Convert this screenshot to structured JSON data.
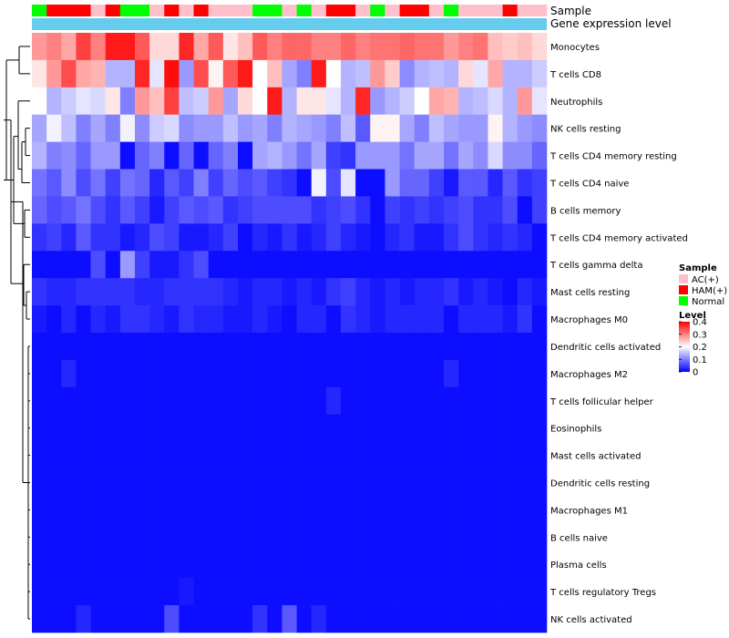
{
  "chart_data": {
    "type": "heatmap",
    "title": "",
    "annotation_rows": [
      "Sample",
      "Gene expression level"
    ],
    "row_labels": [
      "Monocytes",
      "T cells CD8",
      "Neutrophils",
      "NK cells resting",
      "T cells CD4 memory resting",
      "T cells CD4 naive",
      "B cells memory",
      "T cells CD4 memory activated",
      "T cells gamma delta",
      "Mast cells resting",
      "Macrophages M0",
      "Dendritic cells activated",
      "Macrophages M2",
      "T cells follicular helper",
      "Eosinophils",
      "Mast cells activated",
      "Dendritic cells resting",
      "Macrophages M1",
      "B cells naive",
      "Plasma cells",
      "T cells regulatory  Tregs",
      "NK cells activated"
    ],
    "sample_groups": [
      "Normal",
      "HAM(+)",
      "HAM(+)",
      "HAM(+)",
      "AC(+)",
      "HAM(+)",
      "Normal",
      "Normal",
      "AC(+)",
      "HAM(+)",
      "AC(+)",
      "HAM(+)",
      "AC(+)",
      "AC(+)",
      "AC(+)",
      "Normal",
      "Normal",
      "AC(+)",
      "Normal",
      "AC(+)",
      "HAM(+)",
      "HAM(+)",
      "AC(+)",
      "Normal",
      "AC(+)",
      "HAM(+)",
      "HAM(+)",
      "AC(+)",
      "Normal",
      "AC(+)",
      "AC(+)",
      "AC(+)",
      "HAM(+)",
      "AC(+)",
      "AC(+)"
    ],
    "values": [
      [
        0.28,
        0.3,
        0.27,
        0.35,
        0.3,
        0.38,
        0.38,
        0.33,
        0.23,
        0.23,
        0.37,
        0.27,
        0.33,
        0.22,
        0.25,
        0.33,
        0.3,
        0.32,
        0.32,
        0.3,
        0.3,
        0.32,
        0.3,
        0.31,
        0.31,
        0.32,
        0.31,
        0.31,
        0.28,
        0.3,
        0.31,
        0.25,
        0.24,
        0.25,
        0.23
      ],
      [
        0.22,
        0.28,
        0.34,
        0.27,
        0.26,
        0.14,
        0.14,
        0.37,
        0.18,
        0.39,
        0.12,
        0.34,
        0.21,
        0.33,
        0.38,
        0.2,
        0.25,
        0.13,
        0.1,
        0.38,
        0.2,
        0.14,
        0.15,
        0.28,
        0.24,
        0.11,
        0.14,
        0.15,
        0.14,
        0.23,
        0.18,
        0.27,
        0.14,
        0.14,
        0.16
      ],
      [
        0.2,
        0.14,
        0.16,
        0.18,
        0.17,
        0.22,
        0.1,
        0.28,
        0.25,
        0.35,
        0.15,
        0.16,
        0.28,
        0.13,
        0.23,
        0.2,
        0.38,
        0.14,
        0.22,
        0.22,
        0.18,
        0.14,
        0.37,
        0.12,
        0.14,
        0.16,
        0.2,
        0.27,
        0.26,
        0.14,
        0.15,
        0.17,
        0.14,
        0.28,
        0.18
      ],
      [
        0.13,
        0.19,
        0.15,
        0.1,
        0.13,
        0.1,
        0.19,
        0.11,
        0.16,
        0.17,
        0.11,
        0.12,
        0.12,
        0.15,
        0.12,
        0.13,
        0.1,
        0.14,
        0.13,
        0.12,
        0.1,
        0.15,
        0.07,
        0.21,
        0.21,
        0.13,
        0.1,
        0.15,
        0.13,
        0.12,
        0.12,
        0.21,
        0.14,
        0.12,
        0.11
      ],
      [
        0.14,
        0.1,
        0.11,
        0.08,
        0.12,
        0.12,
        0.01,
        0.08,
        0.1,
        0.01,
        0.08,
        0.01,
        0.08,
        0.1,
        0.01,
        0.13,
        0.14,
        0.12,
        0.09,
        0.13,
        0.05,
        0.04,
        0.12,
        0.12,
        0.12,
        0.09,
        0.13,
        0.13,
        0.09,
        0.13,
        0.11,
        0.17,
        0.11,
        0.11,
        0.08
      ],
      [
        0.09,
        0.07,
        0.11,
        0.06,
        0.09,
        0.05,
        0.09,
        0.08,
        0.03,
        0.07,
        0.05,
        0.1,
        0.05,
        0.08,
        0.06,
        0.07,
        0.05,
        0.04,
        0.01,
        0.19,
        0.06,
        0.18,
        0.01,
        0.01,
        0.12,
        0.08,
        0.08,
        0.05,
        0.02,
        0.07,
        0.07,
        0.03,
        0.07,
        0.04,
        0.05
      ],
      [
        0.08,
        0.06,
        0.07,
        0.09,
        0.06,
        0.04,
        0.07,
        0.05,
        0.02,
        0.05,
        0.07,
        0.06,
        0.07,
        0.04,
        0.05,
        0.06,
        0.06,
        0.06,
        0.06,
        0.04,
        0.05,
        0.06,
        0.04,
        0.01,
        0.05,
        0.04,
        0.05,
        0.04,
        0.05,
        0.06,
        0.04,
        0.04,
        0.06,
        0.01,
        0.05
      ],
      [
        0.04,
        0.05,
        0.03,
        0.07,
        0.04,
        0.04,
        0.02,
        0.03,
        0.06,
        0.05,
        0.02,
        0.02,
        0.03,
        0.05,
        0.01,
        0.03,
        0.02,
        0.04,
        0.02,
        0.03,
        0.05,
        0.03,
        0.02,
        0.01,
        0.03,
        0.04,
        0.02,
        0.02,
        0.04,
        0.06,
        0.04,
        0.03,
        0.04,
        0.03,
        0.01
      ],
      [
        0.01,
        0.01,
        0.01,
        0.01,
        0.06,
        0.01,
        0.12,
        0.05,
        0.02,
        0.02,
        0.04,
        0.06,
        0.01,
        0.01,
        0.01,
        0.01,
        0.01,
        0.01,
        0.01,
        0.01,
        0.01,
        0.01,
        0.01,
        0.01,
        0.01,
        0.01,
        0.01,
        0.01,
        0.01,
        0.01,
        0.01,
        0.01,
        0.01,
        0.01,
        0.01
      ],
      [
        0.04,
        0.03,
        0.03,
        0.04,
        0.04,
        0.04,
        0.04,
        0.03,
        0.03,
        0.04,
        0.04,
        0.04,
        0.04,
        0.03,
        0.02,
        0.03,
        0.03,
        0.02,
        0.03,
        0.02,
        0.04,
        0.05,
        0.03,
        0.02,
        0.03,
        0.02,
        0.03,
        0.03,
        0.04,
        0.02,
        0.03,
        0.02,
        0.01,
        0.03,
        0.02
      ],
      [
        0.02,
        0.01,
        0.03,
        0.01,
        0.03,
        0.02,
        0.04,
        0.04,
        0.03,
        0.02,
        0.04,
        0.03,
        0.03,
        0.02,
        0.02,
        0.03,
        0.02,
        0.01,
        0.03,
        0.03,
        0.01,
        0.04,
        0.03,
        0.02,
        0.03,
        0.03,
        0.03,
        0.03,
        0.01,
        0.03,
        0.03,
        0.03,
        0.02,
        0.04,
        0.01
      ],
      [
        0.01,
        0.01,
        0.01,
        0.01,
        0.01,
        0.01,
        0.01,
        0.01,
        0.01,
        0.01,
        0.01,
        0.01,
        0.01,
        0.01,
        0.01,
        0.01,
        0.01,
        0.01,
        0.01,
        0.01,
        0.01,
        0.01,
        0.01,
        0.01,
        0.01,
        0.01,
        0.01,
        0.01,
        0.01,
        0.01,
        0.01,
        0.01,
        0.01,
        0.01,
        0.01
      ],
      [
        0.01,
        0.01,
        0.03,
        0.01,
        0.01,
        0.01,
        0.01,
        0.01,
        0.01,
        0.01,
        0.01,
        0.01,
        0.01,
        0.01,
        0.01,
        0.01,
        0.01,
        0.01,
        0.01,
        0.01,
        0.01,
        0.01,
        0.01,
        0.01,
        0.01,
        0.01,
        0.01,
        0.01,
        0.03,
        0.01,
        0.01,
        0.01,
        0.01,
        0.01,
        0.01
      ],
      [
        0.01,
        0.01,
        0.01,
        0.01,
        0.01,
        0.01,
        0.01,
        0.01,
        0.01,
        0.01,
        0.01,
        0.01,
        0.01,
        0.01,
        0.01,
        0.01,
        0.01,
        0.01,
        0.01,
        0.01,
        0.03,
        0.01,
        0.01,
        0.01,
        0.01,
        0.01,
        0.01,
        0.01,
        0.01,
        0.01,
        0.01,
        0.01,
        0.01,
        0.01,
        0.01
      ],
      [
        0.01,
        0.01,
        0.01,
        0.01,
        0.01,
        0.01,
        0.01,
        0.01,
        0.01,
        0.01,
        0.01,
        0.01,
        0.01,
        0.01,
        0.01,
        0.01,
        0.01,
        0.01,
        0.01,
        0.01,
        0.01,
        0.01,
        0.01,
        0.01,
        0.01,
        0.01,
        0.01,
        0.01,
        0.01,
        0.01,
        0.01,
        0.01,
        0.01,
        0.01,
        0.01
      ],
      [
        0.01,
        0.01,
        0.01,
        0.01,
        0.01,
        0.01,
        0.01,
        0.01,
        0.01,
        0.01,
        0.01,
        0.01,
        0.01,
        0.01,
        0.01,
        0.01,
        0.01,
        0.01,
        0.01,
        0.01,
        0.01,
        0.01,
        0.01,
        0.01,
        0.01,
        0.01,
        0.01,
        0.01,
        0.01,
        0.01,
        0.01,
        0.01,
        0.01,
        0.01,
        0.01
      ],
      [
        0.01,
        0.01,
        0.01,
        0.01,
        0.01,
        0.01,
        0.01,
        0.01,
        0.01,
        0.01,
        0.01,
        0.01,
        0.01,
        0.01,
        0.01,
        0.01,
        0.01,
        0.01,
        0.01,
        0.01,
        0.01,
        0.01,
        0.01,
        0.01,
        0.01,
        0.01,
        0.01,
        0.01,
        0.01,
        0.01,
        0.01,
        0.01,
        0.01,
        0.01,
        0.01
      ],
      [
        0.01,
        0.01,
        0.01,
        0.01,
        0.01,
        0.01,
        0.01,
        0.01,
        0.01,
        0.01,
        0.01,
        0.01,
        0.01,
        0.01,
        0.01,
        0.01,
        0.01,
        0.01,
        0.01,
        0.01,
        0.01,
        0.01,
        0.01,
        0.01,
        0.01,
        0.01,
        0.01,
        0.01,
        0.01,
        0.01,
        0.01,
        0.01,
        0.01,
        0.01,
        0.01
      ],
      [
        0.01,
        0.01,
        0.01,
        0.01,
        0.01,
        0.01,
        0.01,
        0.01,
        0.01,
        0.01,
        0.01,
        0.01,
        0.01,
        0.01,
        0.01,
        0.01,
        0.01,
        0.01,
        0.01,
        0.01,
        0.01,
        0.01,
        0.01,
        0.01,
        0.01,
        0.01,
        0.01,
        0.01,
        0.01,
        0.01,
        0.01,
        0.01,
        0.01,
        0.01,
        0.01
      ],
      [
        0.01,
        0.01,
        0.01,
        0.01,
        0.01,
        0.01,
        0.01,
        0.01,
        0.01,
        0.01,
        0.01,
        0.01,
        0.01,
        0.01,
        0.01,
        0.01,
        0.01,
        0.01,
        0.01,
        0.01,
        0.01,
        0.01,
        0.01,
        0.01,
        0.01,
        0.01,
        0.01,
        0.01,
        0.01,
        0.01,
        0.01,
        0.01,
        0.01,
        0.01,
        0.01
      ],
      [
        0.01,
        0.01,
        0.01,
        0.01,
        0.01,
        0.01,
        0.01,
        0.01,
        0.01,
        0.01,
        0.02,
        0.01,
        0.01,
        0.01,
        0.01,
        0.01,
        0.01,
        0.01,
        0.01,
        0.01,
        0.01,
        0.01,
        0.01,
        0.01,
        0.01,
        0.01,
        0.01,
        0.01,
        0.01,
        0.01,
        0.01,
        0.01,
        0.01,
        0.01,
        0.01
      ],
      [
        0.01,
        0.01,
        0.01,
        0.03,
        0.01,
        0.01,
        0.01,
        0.01,
        0.01,
        0.06,
        0.01,
        0.01,
        0.01,
        0.01,
        0.01,
        0.04,
        0.01,
        0.07,
        0.01,
        0.03,
        0.01,
        0.01,
        0.01,
        0.01,
        0.01,
        0.01,
        0.01,
        0.01,
        0.01,
        0.01,
        0.01,
        0.01,
        0.01,
        0.01,
        0.01
      ]
    ],
    "legend": {
      "sample_title": "Sample",
      "sample_entries": [
        {
          "label": "AC(+)",
          "color": "#FFC0CB"
        },
        {
          "label": "HAM(+)",
          "color": "#FF0000"
        },
        {
          "label": "Normal",
          "color": "#00FF00"
        }
      ],
      "level_title": "Level",
      "level_ticks": [
        "0.4",
        "0.3",
        "0.2",
        "0.1",
        "0"
      ],
      "level_tick_values": [
        0.4,
        0.3,
        0.2,
        0.1,
        0
      ]
    },
    "color_scale": {
      "low": "#0000FF",
      "mid": "#FFFFFF",
      "high": "#FF0000",
      "min": 0,
      "max": 0.4,
      "midpoint": 0.2
    },
    "expression_bar_color": "#66CCEE"
  }
}
